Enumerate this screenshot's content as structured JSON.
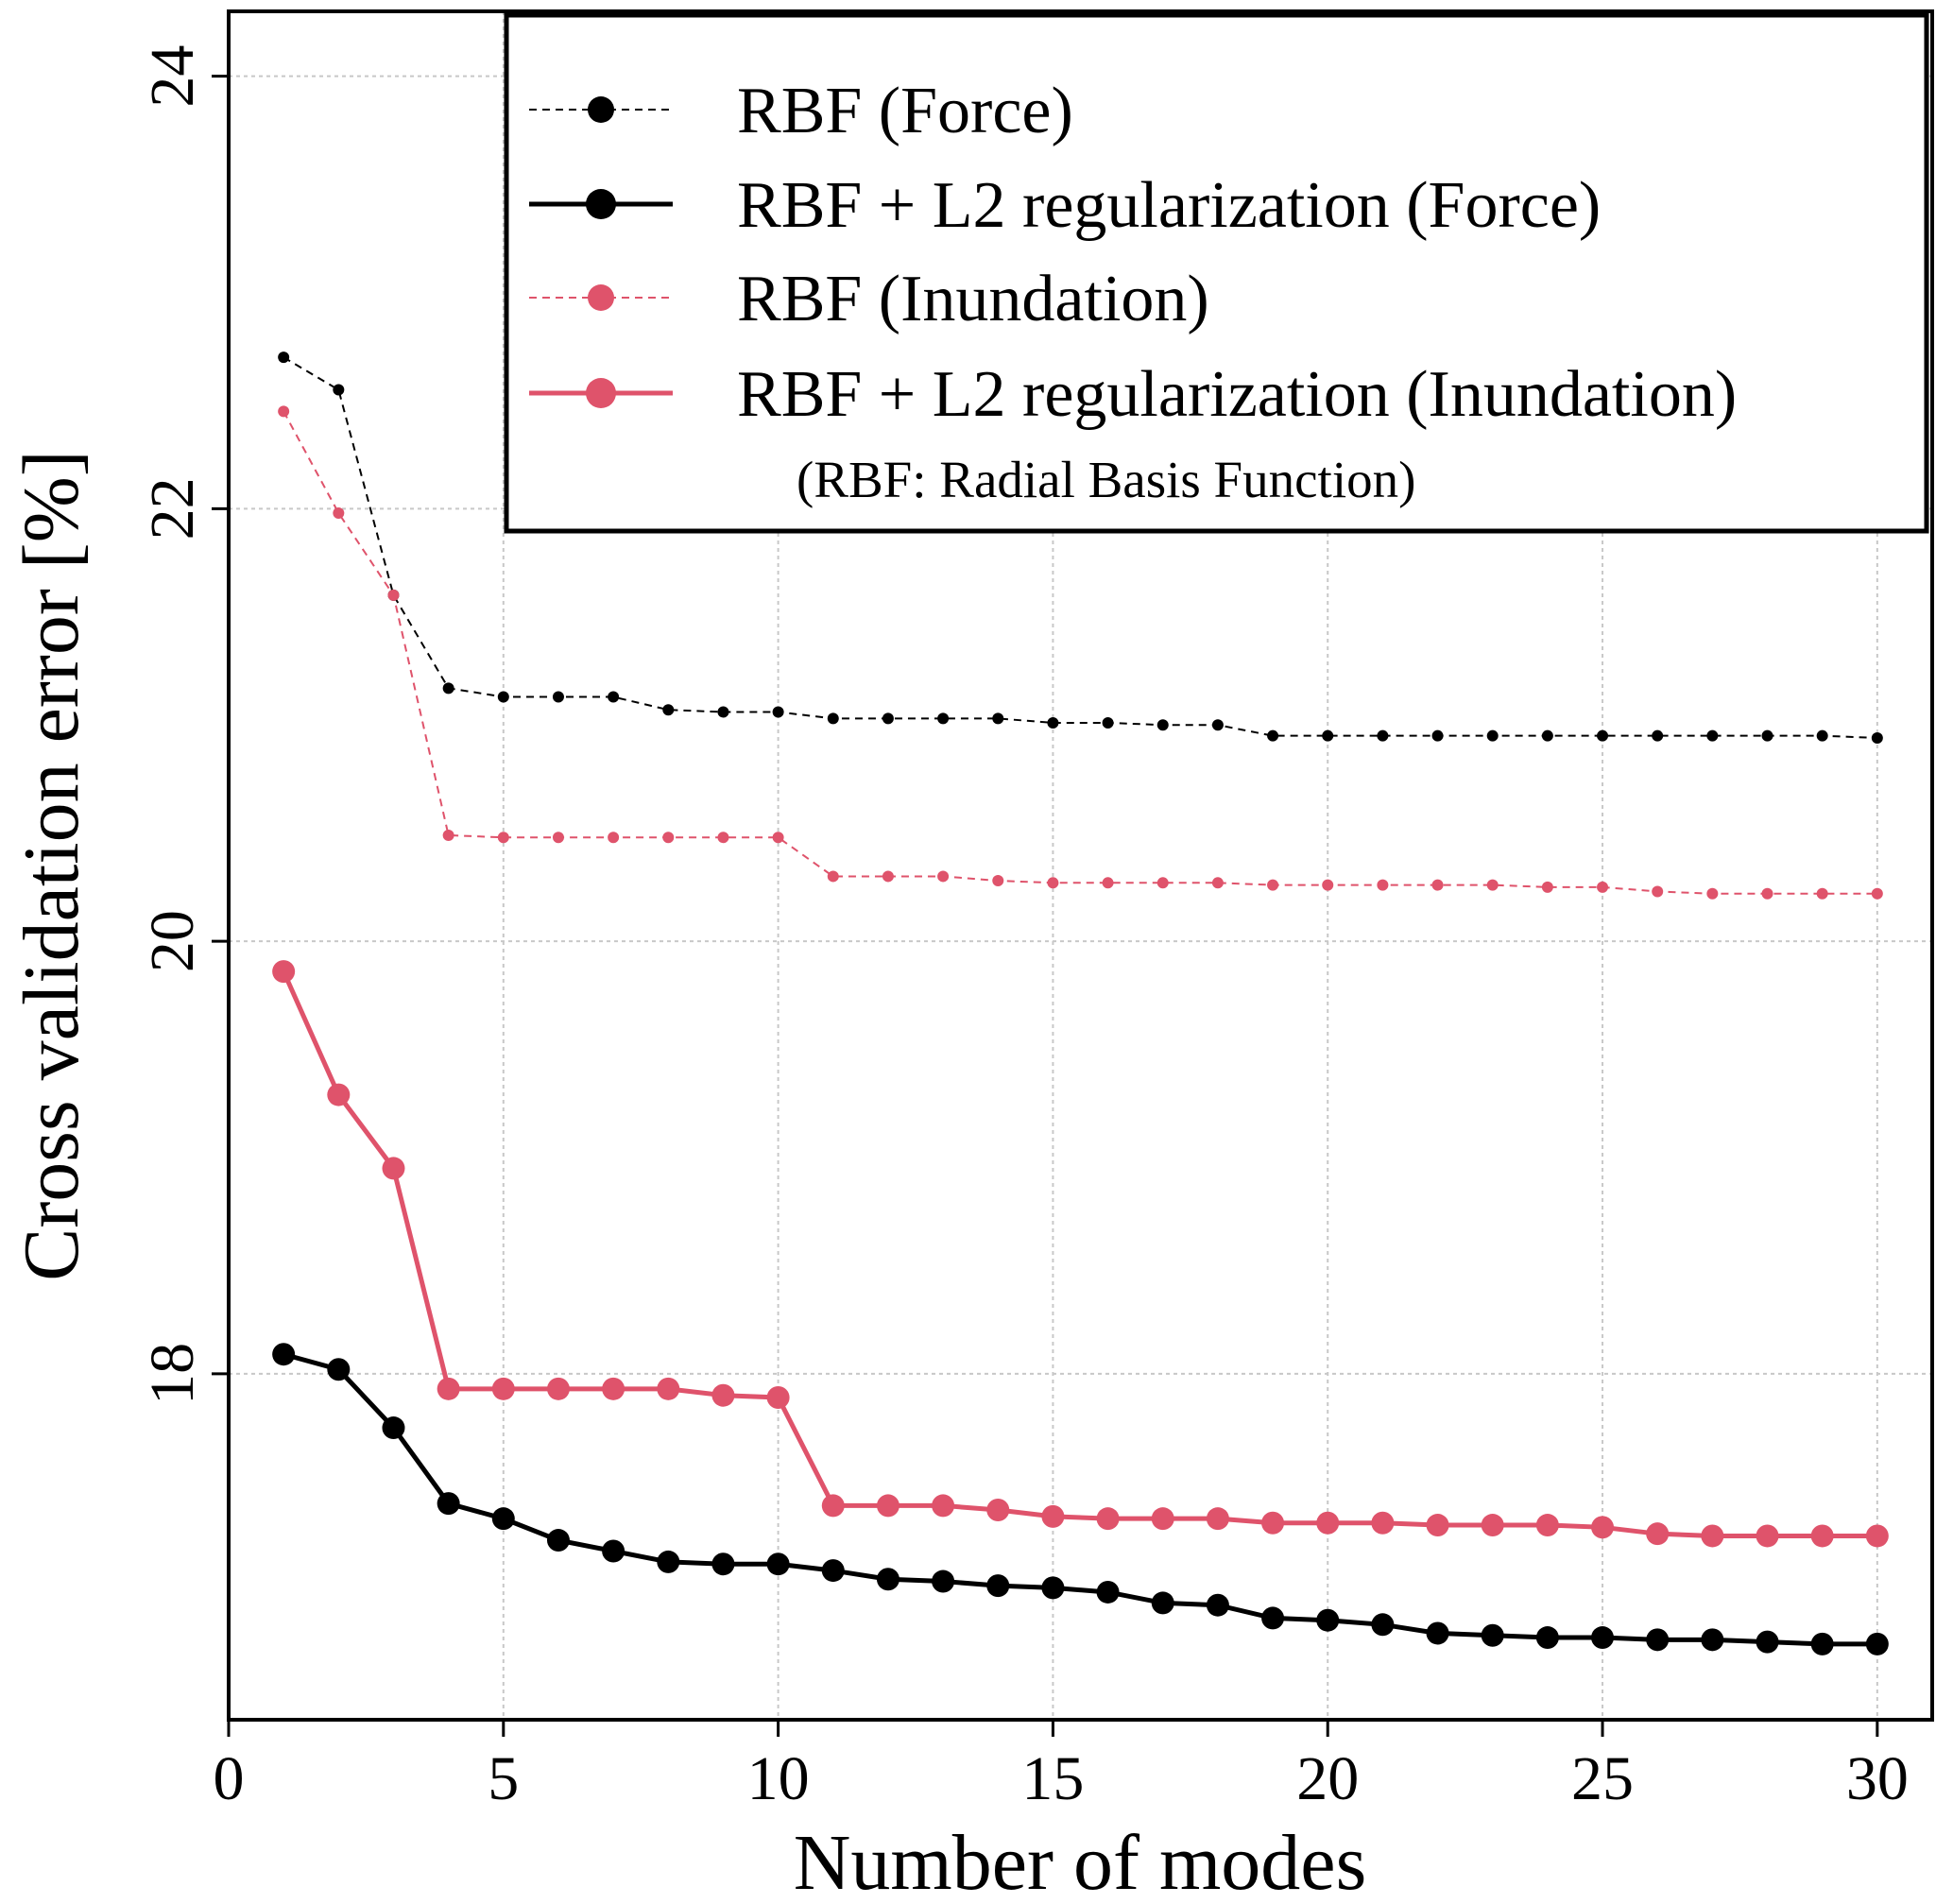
{
  "chart_data": {
    "type": "line",
    "title": "",
    "xlabel": "Number of modes",
    "ylabel": "Cross validation error [%]",
    "xlim": [
      0,
      31
    ],
    "ylim": [
      16.4,
      24.3
    ],
    "xticks": [
      0,
      5,
      10,
      15,
      20,
      25,
      30
    ],
    "yticks": [
      18,
      20,
      22,
      24
    ],
    "grid": true,
    "legend_position": "top-right",
    "legend_note": "(RBF: Radial Basis Function)",
    "x": [
      1,
      2,
      3,
      4,
      5,
      6,
      7,
      8,
      9,
      10,
      11,
      12,
      13,
      14,
      15,
      16,
      17,
      18,
      19,
      20,
      21,
      22,
      23,
      24,
      25,
      26,
      27,
      28,
      29,
      30
    ],
    "series": [
      {
        "name": "RBF (Force)",
        "color": "#000000",
        "style": "dashed",
        "marker": "small",
        "values": [
          22.7,
          22.55,
          21.6,
          21.17,
          21.13,
          21.13,
          21.13,
          21.07,
          21.06,
          21.06,
          21.03,
          21.03,
          21.03,
          21.03,
          21.01,
          21.01,
          21.0,
          21.0,
          20.95,
          20.95,
          20.95,
          20.95,
          20.95,
          20.95,
          20.95,
          20.95,
          20.95,
          20.95,
          20.95,
          20.94
        ]
      },
      {
        "name": "RBF + L2 regularization (Force)",
        "color": "#000000",
        "style": "solid",
        "marker": "large",
        "values": [
          18.09,
          18.02,
          17.75,
          17.4,
          17.33,
          17.23,
          17.18,
          17.13,
          17.12,
          17.12,
          17.09,
          17.05,
          17.04,
          17.02,
          17.01,
          16.99,
          16.94,
          16.93,
          16.87,
          16.86,
          16.84,
          16.8,
          16.79,
          16.78,
          16.78,
          16.77,
          16.77,
          16.76,
          16.75,
          16.75
        ]
      },
      {
        "name": "RBF (Inundation)",
        "color": "#df536b",
        "style": "dashed",
        "marker": "small",
        "values": [
          22.45,
          21.98,
          21.6,
          20.49,
          20.48,
          20.48,
          20.48,
          20.48,
          20.48,
          20.48,
          20.3,
          20.3,
          20.3,
          20.28,
          20.27,
          20.27,
          20.27,
          20.27,
          20.26,
          20.26,
          20.26,
          20.26,
          20.26,
          20.25,
          20.25,
          20.23,
          20.22,
          20.22,
          20.22,
          20.22
        ]
      },
      {
        "name": "RBF + L2 regularization (Inundation)",
        "color": "#df536b",
        "style": "solid",
        "marker": "large",
        "values": [
          19.86,
          19.29,
          18.95,
          17.93,
          17.93,
          17.93,
          17.93,
          17.93,
          17.9,
          17.89,
          17.39,
          17.39,
          17.39,
          17.37,
          17.34,
          17.33,
          17.33,
          17.33,
          17.31,
          17.31,
          17.31,
          17.3,
          17.3,
          17.3,
          17.29,
          17.26,
          17.25,
          17.25,
          17.25,
          17.25
        ]
      }
    ]
  }
}
